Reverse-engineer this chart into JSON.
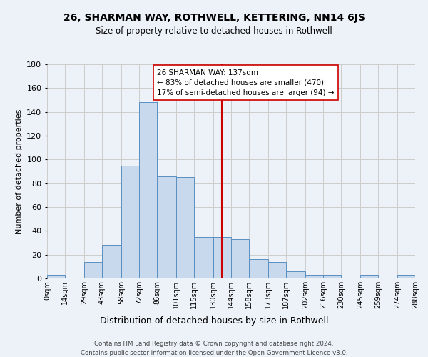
{
  "title": "26, SHARMAN WAY, ROTHWELL, KETTERING, NN14 6JS",
  "subtitle": "Size of property relative to detached houses in Rothwell",
  "xlabel": "Distribution of detached houses by size in Rothwell",
  "ylabel": "Number of detached properties",
  "bin_edges": [
    0,
    14,
    29,
    43,
    58,
    72,
    86,
    101,
    115,
    130,
    144,
    158,
    173,
    187,
    202,
    216,
    230,
    245,
    259,
    274,
    288
  ],
  "bin_labels": [
    "0sqm",
    "14sqm",
    "29sqm",
    "43sqm",
    "58sqm",
    "72sqm",
    "86sqm",
    "101sqm",
    "115sqm",
    "130sqm",
    "144sqm",
    "158sqm",
    "173sqm",
    "187sqm",
    "202sqm",
    "216sqm",
    "230sqm",
    "245sqm",
    "259sqm",
    "274sqm",
    "288sqm"
  ],
  "counts": [
    3,
    0,
    14,
    28,
    95,
    148,
    86,
    85,
    35,
    35,
    33,
    16,
    14,
    6,
    3,
    3,
    0,
    3,
    0,
    3
  ],
  "bar_color": "#c8d9ee",
  "bar_edge_color": "#5a8fc0",
  "property_value": 137,
  "vline_color": "#cc0000",
  "annotation_line1": "26 SHARMAN WAY: 137sqm",
  "annotation_line2": "← 83% of detached houses are smaller (470)",
  "annotation_line3": "17% of semi-detached houses are larger (94) →",
  "annotation_box_edge": "#cc0000",
  "annotation_box_bg": "white",
  "ylim": [
    0,
    180
  ],
  "yticks": [
    0,
    20,
    40,
    60,
    80,
    100,
    120,
    140,
    160,
    180
  ],
  "grid_color": "#cccccc",
  "footer_line1": "Contains HM Land Registry data © Crown copyright and database right 2024.",
  "footer_line2": "Contains public sector information licensed under the Open Government Licence v3.0.",
  "background_color": "#edf2f9"
}
